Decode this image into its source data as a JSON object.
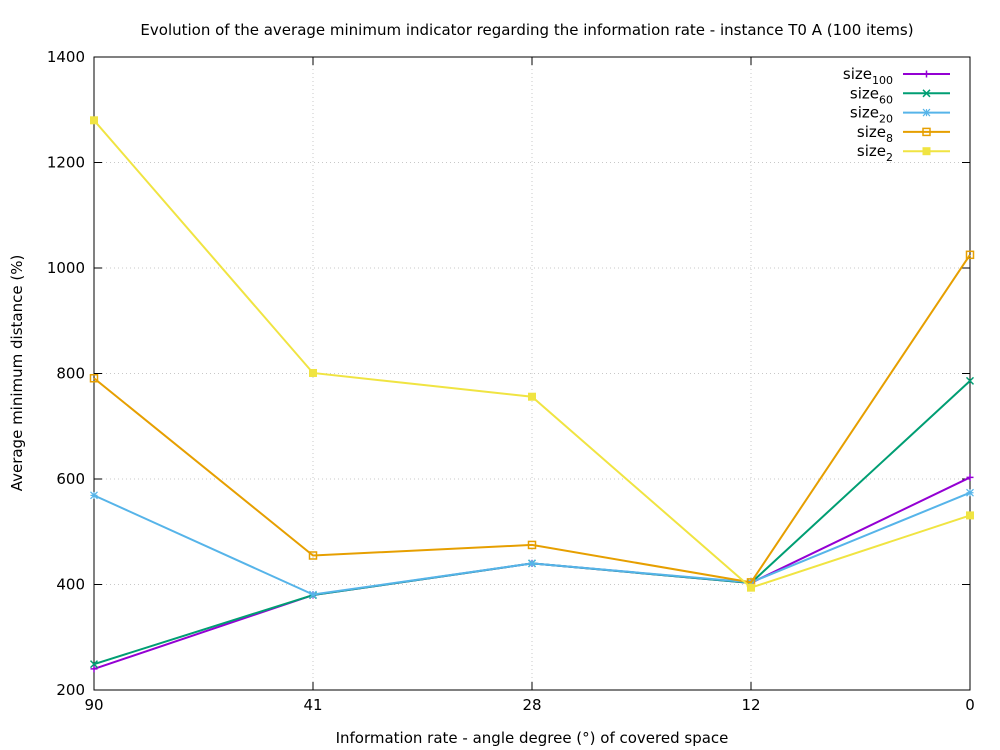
{
  "chart_data": {
    "type": "line",
    "title": "Evolution of the average minimum indicator regarding the information rate - instance T0 A (100 items)",
    "xlabel": "Information rate - angle degree (°)  of covered space",
    "ylabel": "Average minimum distance (%)",
    "categories": [
      "90",
      "41",
      "28",
      "12",
      "0"
    ],
    "ylim": [
      200,
      1400
    ],
    "yticks": [
      "200",
      "400",
      "600",
      "800",
      "1000",
      "1200",
      "1400"
    ],
    "grid": true,
    "legend_position": "top-right",
    "series": [
      {
        "name": "size",
        "sub": "100",
        "color": "#9400d3",
        "marker": "plus",
        "values": [
          240,
          380,
          440,
          403,
          603
        ]
      },
      {
        "name": "size",
        "sub": "60",
        "color": "#009e73",
        "marker": "cross",
        "values": [
          249,
          380,
          440,
          403,
          786
        ]
      },
      {
        "name": "size",
        "sub": "20",
        "color": "#56b4e9",
        "marker": "star",
        "values": [
          569,
          381,
          440,
          404,
          574
        ]
      },
      {
        "name": "size",
        "sub": "8",
        "color": "#e69f00",
        "marker": "open-square",
        "values": [
          791,
          455,
          475,
          404,
          1025
        ]
      },
      {
        "name": "size",
        "sub": "2",
        "color": "#f0e442",
        "marker": "filled-square",
        "values": [
          1280,
          801,
          756,
          394,
          531
        ]
      }
    ]
  }
}
